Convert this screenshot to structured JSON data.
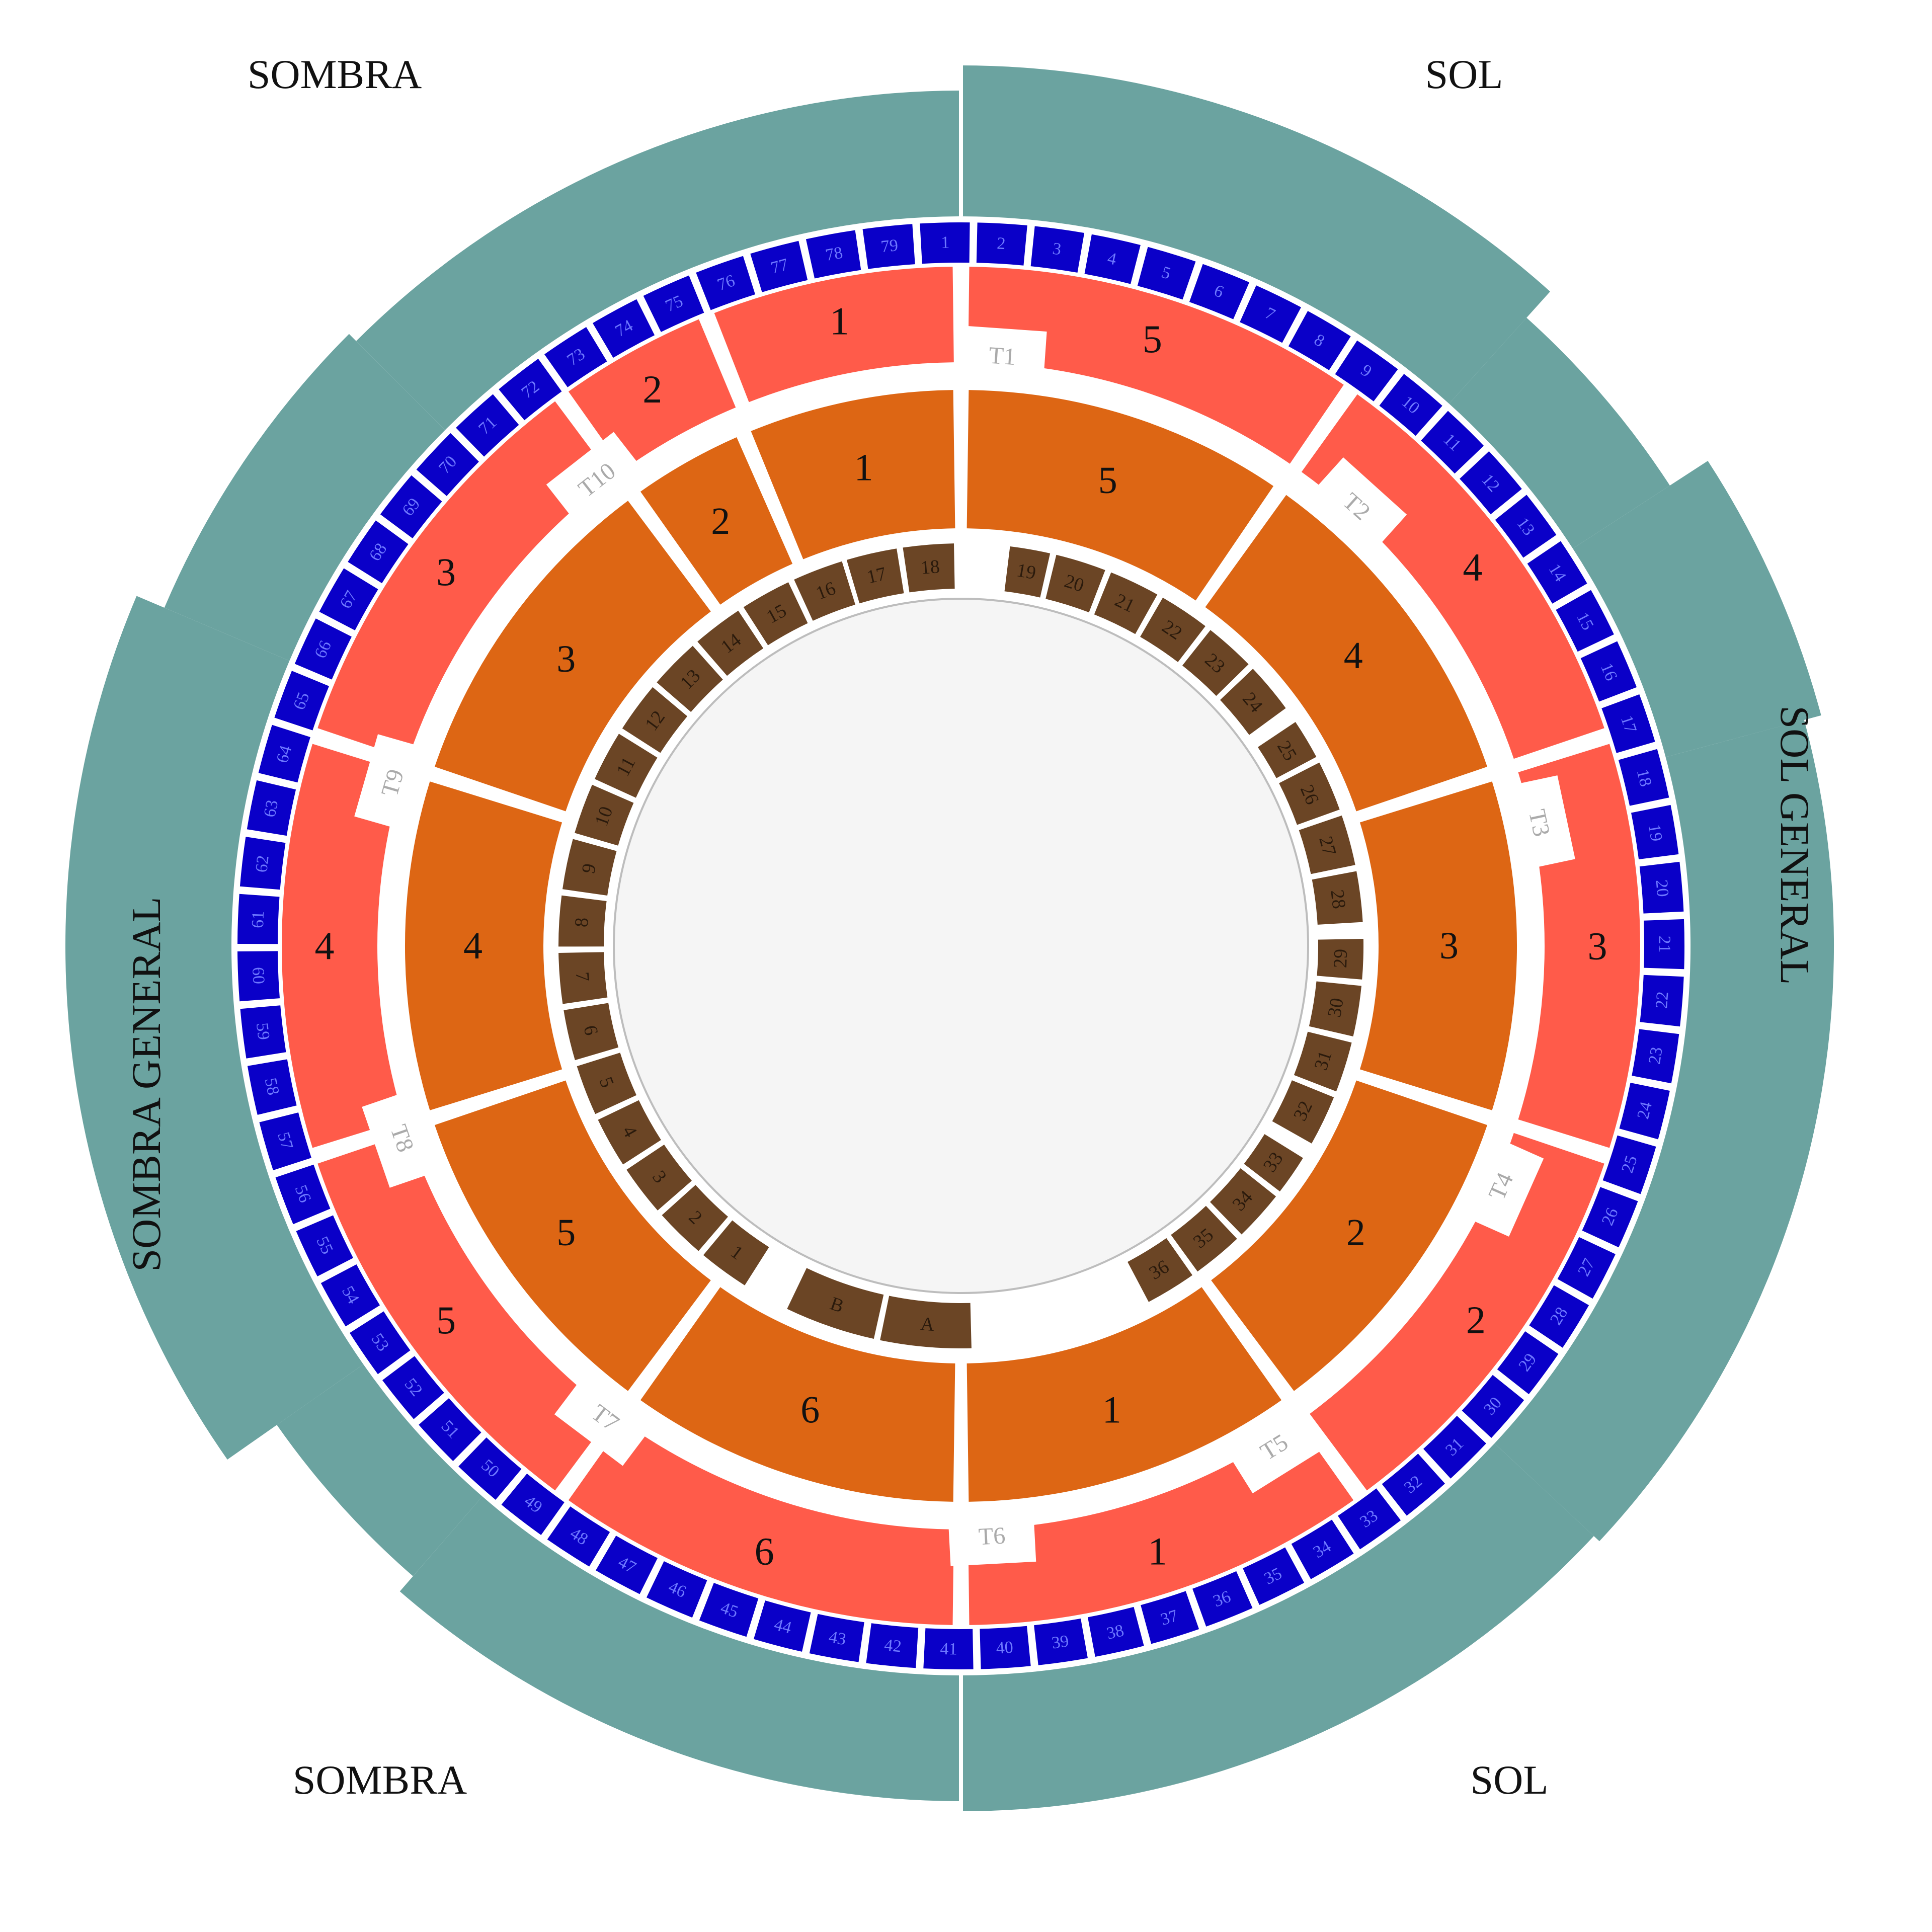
{
  "map": {
    "corner_labels": {
      "top_left": "SOMBRA",
      "top_right": "SOL",
      "bottom_left": "SOMBRA",
      "bottom_right": "SOL"
    },
    "side_labels": {
      "left": "SOMBRA GENERAL",
      "right": "SOL GENERAL"
    },
    "colors": {
      "general_band": "#6BA3A0",
      "blue_seats": "#0A00C8",
      "blue_seat_text": "#6E78FF",
      "outer_ring": "#FF5B4A",
      "middle_ring": "#DD6614",
      "barrera": "#6B4525",
      "barrera_text": "#2A1A0C",
      "tunnel_text": "#AAAAAA",
      "arena_fill": "#F5F5F5",
      "arena_stroke": "#BDBDBD"
    },
    "general_seats": [
      "2",
      "3",
      "4",
      "5",
      "6",
      "7",
      "8",
      "9",
      "10",
      "11",
      "12",
      "13",
      "14",
      "15",
      "16",
      "17",
      "18",
      "19",
      "20",
      "21",
      "22",
      "23",
      "24",
      "25",
      "26",
      "27",
      "28",
      "29",
      "30",
      "31",
      "32",
      "33",
      "34",
      "35",
      "36",
      "37",
      "38",
      "39",
      "40",
      "41",
      "42",
      "43",
      "44",
      "45",
      "46",
      "47",
      "48",
      "49",
      "50",
      "51",
      "52",
      "53",
      "54",
      "55",
      "56",
      "57",
      "58",
      "59",
      "60",
      "61",
      "62",
      "63",
      "64",
      "65",
      "66",
      "67",
      "68",
      "69",
      "70",
      "71",
      "72",
      "73",
      "74",
      "75",
      "76",
      "77",
      "78",
      "79",
      "1"
    ],
    "outer_sections": [
      "5",
      "4",
      "3",
      "2",
      "1",
      "6",
      "5",
      "4",
      "3",
      "2",
      "1"
    ],
    "tunnels": [
      "T1",
      "T2",
      "T3",
      "T4",
      "T5",
      "T6",
      "T7",
      "T8",
      "T9",
      "T10"
    ],
    "middle_sections": [
      "5",
      "4",
      "3",
      "2",
      "1",
      "6",
      "5",
      "4",
      "3",
      "2",
      "1"
    ],
    "barrera_seats": [
      "19",
      "20",
      "21",
      "22",
      "23",
      "24",
      "25",
      "26",
      "27",
      "28",
      "29",
      "30",
      "31",
      "32",
      "33",
      "34",
      "35",
      "36",
      "A",
      "B",
      "1",
      "2",
      "3",
      "4",
      "5",
      "6",
      "7",
      "8",
      "9",
      "10",
      "11",
      "12",
      "13",
      "14",
      "15",
      "16",
      "17",
      "18"
    ]
  }
}
